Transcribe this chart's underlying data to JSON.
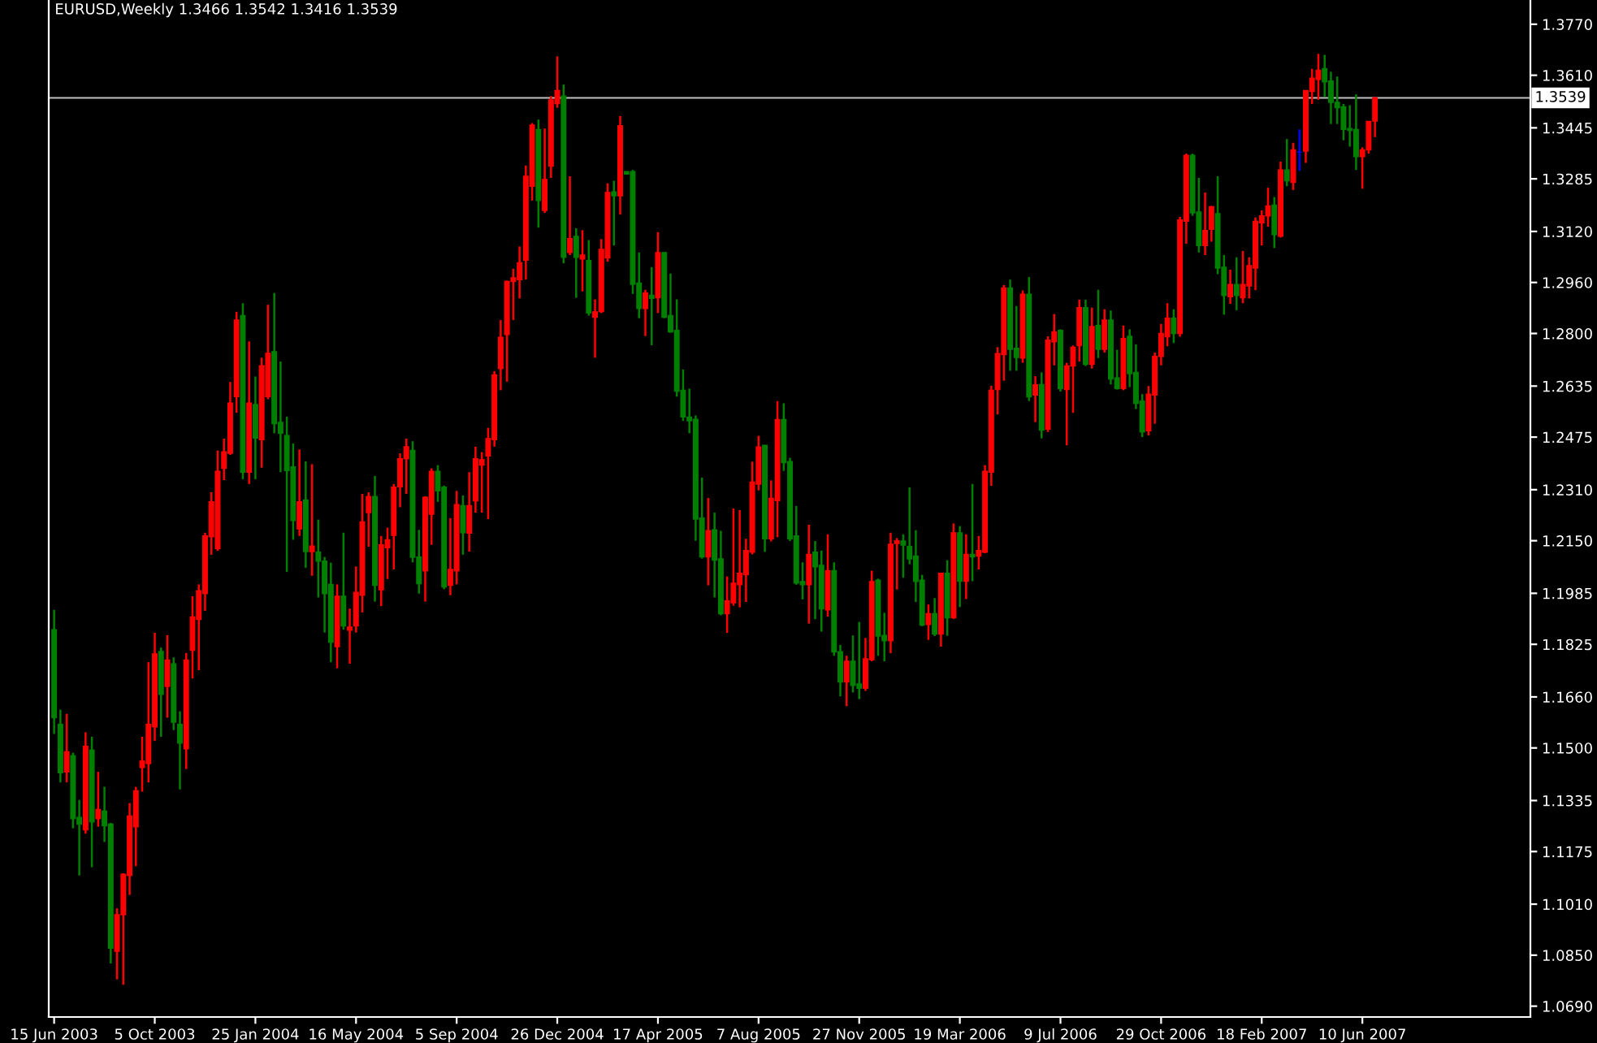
{
  "chart_data": {
    "type": "candlestick",
    "title": "EURUSD,Weekly 1.3466 1.3542 1.3416 1.3539",
    "x": [
      "2003-06-15",
      "2003-06-22",
      "2003-06-29",
      "2003-07-06",
      "2003-07-13",
      "2003-07-20",
      "2003-07-27",
      "2003-08-03",
      "2003-08-10",
      "2003-08-17",
      "2003-08-24",
      "2003-08-31",
      "2003-09-07",
      "2003-09-14",
      "2003-09-21",
      "2003-09-28",
      "2003-10-05",
      "2003-10-12",
      "2003-10-19",
      "2003-10-26",
      "2003-11-02",
      "2003-11-09",
      "2003-11-16",
      "2003-11-23",
      "2003-11-30",
      "2003-12-07",
      "2003-12-14",
      "2003-12-21",
      "2003-12-28",
      "2004-01-04",
      "2004-01-11",
      "2004-01-18",
      "2004-01-25",
      "2004-02-01",
      "2004-02-08",
      "2004-02-15",
      "2004-02-22",
      "2004-02-29",
      "2004-03-07",
      "2004-03-14",
      "2004-03-21",
      "2004-03-28",
      "2004-04-04",
      "2004-04-11",
      "2004-04-18",
      "2004-04-25",
      "2004-05-02",
      "2004-05-09",
      "2004-05-16",
      "2004-05-23",
      "2004-05-30",
      "2004-06-06",
      "2004-06-13",
      "2004-06-20",
      "2004-06-27",
      "2004-07-04",
      "2004-07-11",
      "2004-07-18",
      "2004-07-25",
      "2004-08-01",
      "2004-08-08",
      "2004-08-15",
      "2004-08-22",
      "2004-08-29",
      "2004-09-05",
      "2004-09-12",
      "2004-09-19",
      "2004-09-26",
      "2004-10-03",
      "2004-10-10",
      "2004-10-17",
      "2004-10-24",
      "2004-10-31",
      "2004-11-07",
      "2004-11-14",
      "2004-11-21",
      "2004-11-28",
      "2004-12-05",
      "2004-12-12",
      "2004-12-19",
      "2004-12-26",
      "2005-01-02",
      "2005-01-09",
      "2005-01-16",
      "2005-01-23",
      "2005-01-30",
      "2005-02-06",
      "2005-02-13",
      "2005-02-20",
      "2005-02-27",
      "2005-03-06",
      "2005-03-13",
      "2005-03-20",
      "2005-03-27",
      "2005-04-03",
      "2005-04-10",
      "2005-04-17",
      "2005-04-24",
      "2005-05-01",
      "2005-05-08",
      "2005-05-15",
      "2005-05-22",
      "2005-05-29",
      "2005-06-05",
      "2005-06-12",
      "2005-06-19",
      "2005-06-26",
      "2005-07-03",
      "2005-07-10",
      "2005-07-17",
      "2005-07-24",
      "2005-07-31",
      "2005-08-07",
      "2005-08-14",
      "2005-08-21",
      "2005-08-28",
      "2005-09-04",
      "2005-09-11",
      "2005-09-18",
      "2005-09-25",
      "2005-10-02",
      "2005-10-09",
      "2005-10-16",
      "2005-10-23",
      "2005-10-30",
      "2005-11-06",
      "2005-11-13",
      "2005-11-20",
      "2005-11-27",
      "2005-12-04",
      "2005-12-11",
      "2005-12-18",
      "2005-12-25",
      "2006-01-01",
      "2006-01-08",
      "2006-01-15",
      "2006-01-22",
      "2006-01-29",
      "2006-02-05",
      "2006-02-12",
      "2006-02-19",
      "2006-02-26",
      "2006-03-05",
      "2006-03-12",
      "2006-03-19",
      "2006-03-26",
      "2006-04-02",
      "2006-04-09",
      "2006-04-16",
      "2006-04-23",
      "2006-04-30",
      "2006-05-07",
      "2006-05-14",
      "2006-05-21",
      "2006-05-28",
      "2006-06-04",
      "2006-06-11",
      "2006-06-18",
      "2006-06-25",
      "2006-07-02",
      "2006-07-09",
      "2006-07-16",
      "2006-07-23",
      "2006-07-30",
      "2006-08-06",
      "2006-08-13",
      "2006-08-20",
      "2006-08-27",
      "2006-09-03",
      "2006-09-10",
      "2006-09-17",
      "2006-09-24",
      "2006-10-01",
      "2006-10-08",
      "2006-10-15",
      "2006-10-22",
      "2006-10-29",
      "2006-11-05",
      "2006-11-12",
      "2006-11-19",
      "2006-11-26",
      "2006-12-03",
      "2006-12-10",
      "2006-12-17",
      "2006-12-24",
      "2006-12-31",
      "2007-01-07",
      "2007-01-14",
      "2007-01-21",
      "2007-01-28",
      "2007-02-04",
      "2007-02-11",
      "2007-02-18",
      "2007-02-25",
      "2007-03-04",
      "2007-03-11",
      "2007-03-18",
      "2007-03-25",
      "2007-04-01",
      "2007-04-08",
      "2007-04-15",
      "2007-04-22",
      "2007-04-29",
      "2007-05-06",
      "2007-05-13",
      "2007-05-20",
      "2007-05-27",
      "2007-06-03",
      "2007-06-10",
      "2007-06-17",
      "2007-06-24"
    ],
    "ohlc": [
      [
        1.1871,
        1.1933,
        1.1544,
        1.1595
      ],
      [
        1.1574,
        1.162,
        1.1392,
        1.1422
      ],
      [
        1.1425,
        1.1607,
        1.1392,
        1.1488
      ],
      [
        1.1476,
        1.1485,
        1.1248,
        1.1278
      ],
      [
        1.1282,
        1.1337,
        1.11,
        1.1261
      ],
      [
        1.1243,
        1.1549,
        1.1231,
        1.1505
      ],
      [
        1.1493,
        1.1535,
        1.1126,
        1.1268
      ],
      [
        1.1278,
        1.1425,
        1.1253,
        1.1307
      ],
      [
        1.1302,
        1.1378,
        1.1205,
        1.1256
      ],
      [
        1.1261,
        1.1265,
        1.0824,
        1.0872
      ],
      [
        1.0862,
        1.0997,
        1.0774,
        1.0977
      ],
      [
        1.0977,
        1.1107,
        1.0757,
        1.1104
      ],
      [
        1.11,
        1.1327,
        1.1039,
        1.1287
      ],
      [
        1.1253,
        1.1378,
        1.1129,
        1.1366
      ],
      [
        1.1439,
        1.1535,
        1.1363,
        1.1459
      ],
      [
        1.1451,
        1.1769,
        1.1392,
        1.1574
      ],
      [
        1.1566,
        1.1861,
        1.1522,
        1.1795
      ],
      [
        1.1803,
        1.1815,
        1.1535,
        1.1668
      ],
      [
        1.1693,
        1.1854,
        1.1595,
        1.1776
      ],
      [
        1.1764,
        1.1784,
        1.1556,
        1.1581
      ],
      [
        1.1574,
        1.1615,
        1.137,
        1.1515
      ],
      [
        1.1497,
        1.1798,
        1.1434,
        1.1776
      ],
      [
        1.1806,
        1.1976,
        1.1718,
        1.1911
      ],
      [
        1.1903,
        1.2013,
        1.1744,
        1.1993
      ],
      [
        1.1984,
        1.2175,
        1.193,
        1.2165
      ],
      [
        1.2162,
        1.2302,
        1.2106,
        1.2272
      ],
      [
        1.2125,
        1.2433,
        1.2118,
        1.2368
      ],
      [
        1.2377,
        1.247,
        1.234,
        1.2429
      ],
      [
        1.2424,
        1.2648,
        1.2419,
        1.2582
      ],
      [
        1.2602,
        1.2868,
        1.2551,
        1.2842
      ],
      [
        1.2856,
        1.2895,
        1.2343,
        1.2365
      ],
      [
        1.2365,
        1.2775,
        1.2328,
        1.2582
      ],
      [
        1.2577,
        1.2665,
        1.2343,
        1.2472
      ],
      [
        1.2467,
        1.2724,
        1.2379,
        1.2699
      ],
      [
        1.2602,
        1.289,
        1.2594,
        1.2738
      ],
      [
        1.2743,
        1.2927,
        1.2487,
        1.2517
      ],
      [
        1.2521,
        1.2712,
        1.2365,
        1.2487
      ],
      [
        1.248,
        1.2539,
        1.2052,
        1.237
      ],
      [
        1.2382,
        1.2455,
        1.2153,
        1.2213
      ],
      [
        1.2187,
        1.2436,
        1.2165,
        1.2272
      ],
      [
        1.2277,
        1.2399,
        1.2065,
        1.2116
      ],
      [
        1.2116,
        1.239,
        1.204,
        1.2133
      ],
      [
        1.2114,
        1.2216,
        1.1972,
        1.2086
      ],
      [
        1.2086,
        1.2099,
        1.1862,
        1.1984
      ],
      [
        1.2013,
        1.2081,
        1.1769,
        1.1832
      ],
      [
        1.1818,
        1.2013,
        1.175,
        1.1976
      ],
      [
        1.1976,
        1.2175,
        1.1871,
        1.1883
      ],
      [
        1.1869,
        1.1937,
        1.1764,
        1.1879
      ],
      [
        1.1883,
        1.2069,
        1.1862,
        1.1988
      ],
      [
        1.1979,
        1.2297,
        1.1925,
        1.2209
      ],
      [
        1.2238,
        1.2302,
        1.2131,
        1.2289
      ],
      [
        1.2289,
        1.2353,
        1.1959,
        1.201
      ],
      [
        1.1996,
        1.2165,
        1.1945,
        1.2137
      ],
      [
        1.2128,
        1.2191,
        1.203,
        1.2153
      ],
      [
        1.2167,
        1.2328,
        1.206,
        1.2318
      ],
      [
        1.2319,
        1.2424,
        1.2255,
        1.2407
      ],
      [
        1.2407,
        1.247,
        1.2297,
        1.2445
      ],
      [
        1.2433,
        1.2462,
        1.2082,
        1.2098
      ],
      [
        1.2099,
        1.2184,
        1.1984,
        1.2015
      ],
      [
        1.2055,
        1.2289,
        1.1959,
        1.2286
      ],
      [
        1.2233,
        1.2377,
        1.2137,
        1.2368
      ],
      [
        1.2368,
        1.2387,
        1.2272,
        1.2306
      ],
      [
        1.2318,
        1.2323,
        1.1998,
        1.2005
      ],
      [
        1.201,
        1.2221,
        1.1979,
        1.206
      ],
      [
        1.2055,
        1.2306,
        1.2013,
        1.2263
      ],
      [
        1.226,
        1.2292,
        1.2106,
        1.2175
      ],
      [
        1.2174,
        1.2365,
        1.2116,
        1.226
      ],
      [
        1.2275,
        1.2445,
        1.2238,
        1.2407
      ],
      [
        1.2387,
        1.2428,
        1.2238,
        1.2404
      ],
      [
        1.2416,
        1.2504,
        1.2218,
        1.247
      ],
      [
        1.2467,
        1.2682,
        1.2445,
        1.267
      ],
      [
        1.269,
        1.2842,
        1.2622,
        1.2788
      ],
      [
        1.2797,
        1.2966,
        1.2649,
        1.2963
      ],
      [
        1.2963,
        1.3003,
        1.2842,
        1.2975
      ],
      [
        1.2969,
        1.3073,
        1.291,
        1.3022
      ],
      [
        1.303,
        1.3327,
        1.2969,
        1.3293
      ],
      [
        1.3262,
        1.346,
        1.3217,
        1.3454
      ],
      [
        1.344,
        1.3471,
        1.3132,
        1.3217
      ],
      [
        1.3186,
        1.3443,
        1.3178,
        1.3283
      ],
      [
        1.3325,
        1.3545,
        1.3288,
        1.3533
      ],
      [
        1.3521,
        1.3669,
        1.3508,
        1.3562
      ],
      [
        1.3545,
        1.3581,
        1.302,
        1.3039
      ],
      [
        1.3054,
        1.3293,
        1.3046,
        1.3098
      ],
      [
        1.3105,
        1.313,
        1.2912,
        1.3039
      ],
      [
        1.3034,
        1.3124,
        1.2932,
        1.3046
      ],
      [
        1.3029,
        1.3093,
        1.2856,
        1.2864
      ],
      [
        1.2851,
        1.2907,
        1.2724,
        1.2868
      ],
      [
        1.2869,
        1.3096,
        1.2864,
        1.3064
      ],
      [
        1.3037,
        1.3271,
        1.3025,
        1.3242
      ],
      [
        1.3244,
        1.3279,
        1.3076,
        1.3232
      ],
      [
        1.3232,
        1.3482,
        1.3173,
        1.3452
      ],
      [
        1.3308,
        1.3308,
        1.33,
        1.33
      ],
      [
        1.3308,
        1.3313,
        1.2924,
        1.2954
      ],
      [
        1.2958,
        1.3054,
        1.2848,
        1.2878
      ],
      [
        1.2878,
        1.2937,
        1.2792,
        1.2927
      ],
      [
        1.292,
        1.3008,
        1.2763,
        1.291
      ],
      [
        1.2912,
        1.3118,
        1.2864,
        1.3054
      ],
      [
        1.3054,
        1.3054,
        1.2848,
        1.2851
      ],
      [
        1.2856,
        1.2988,
        1.2802,
        1.2805
      ],
      [
        1.281,
        1.2907,
        1.2602,
        1.2619
      ],
      [
        1.2622,
        1.2687,
        1.2526,
        1.2538
      ],
      [
        1.2538,
        1.2627,
        1.2487,
        1.2526
      ],
      [
        1.2531,
        1.2543,
        1.215,
        1.2218
      ],
      [
        1.2221,
        1.2348,
        1.2094,
        1.2099
      ],
      [
        1.2099,
        1.2284,
        1.201,
        1.2182
      ],
      [
        1.2184,
        1.2238,
        1.1972,
        1.2089
      ],
      [
        1.2093,
        1.2181,
        1.1916,
        1.1921
      ],
      [
        1.1921,
        1.2038,
        1.1861,
        1.1961
      ],
      [
        1.1955,
        1.2251,
        1.1946,
        1.2017
      ],
      [
        1.2012,
        1.2246,
        1.1941,
        1.2048
      ],
      [
        1.2043,
        1.2156,
        1.1958,
        1.2119
      ],
      [
        1.2114,
        1.2398,
        1.2107,
        1.2334
      ],
      [
        1.2327,
        1.2479,
        1.2308,
        1.2444
      ],
      [
        1.2449,
        1.2449,
        1.2115,
        1.2156
      ],
      [
        1.2156,
        1.2339,
        1.2148,
        1.2283
      ],
      [
        1.2276,
        1.2588,
        1.2161,
        1.253
      ],
      [
        1.253,
        1.2581,
        1.2369,
        1.2395
      ],
      [
        1.2398,
        1.241,
        1.2149,
        1.2156
      ],
      [
        1.2165,
        1.2259,
        1.2012,
        1.2017
      ],
      [
        1.2022,
        1.2082,
        1.1966,
        1.2012
      ],
      [
        1.2012,
        1.22,
        1.189,
        1.2107
      ],
      [
        1.2114,
        1.2149,
        1.1904,
        1.2068
      ],
      [
        1.2073,
        1.2119,
        1.1865,
        1.1936
      ],
      [
        1.1933,
        1.217,
        1.1912,
        1.2056
      ],
      [
        1.2056,
        1.2082,
        1.1789,
        1.1801
      ],
      [
        1.1802,
        1.1823,
        1.1662,
        1.1707
      ],
      [
        1.1707,
        1.1789,
        1.1631,
        1.1772
      ],
      [
        1.1772,
        1.1853,
        1.1674,
        1.1696
      ],
      [
        1.1701,
        1.1895,
        1.1653,
        1.1687
      ],
      [
        1.1687,
        1.1845,
        1.1679,
        1.178
      ],
      [
        1.1777,
        1.2056,
        1.1772,
        1.2022
      ],
      [
        1.2026,
        1.2031,
        1.1789,
        1.1851
      ],
      [
        1.1853,
        1.1924,
        1.1772,
        1.1836
      ],
      [
        1.1836,
        1.2175,
        1.1797,
        1.2139
      ],
      [
        1.2141,
        1.2158,
        1.1997,
        1.2149
      ],
      [
        1.2149,
        1.217,
        1.2034,
        1.2136
      ],
      [
        1.2132,
        1.2317,
        1.2076,
        1.2093
      ],
      [
        1.2102,
        1.2183,
        1.1958,
        1.2022
      ],
      [
        1.2026,
        1.2043,
        1.1882,
        1.1885
      ],
      [
        1.1887,
        1.195,
        1.1839,
        1.1921
      ],
      [
        1.1921,
        1.197,
        1.1851,
        1.1857
      ],
      [
        1.1857,
        1.2048,
        1.1818,
        1.2048
      ],
      [
        1.2048,
        1.2089,
        1.1852,
        1.1908
      ],
      [
        1.1908,
        1.2204,
        1.1905,
        1.2175
      ],
      [
        1.2175,
        1.2196,
        1.1942,
        1.2023
      ],
      [
        1.2023,
        1.217,
        1.1967,
        1.2107
      ],
      [
        1.2107,
        1.2328,
        1.2023,
        1.2099
      ],
      [
        1.2102,
        1.2165,
        1.206,
        1.2119
      ],
      [
        1.2114,
        1.2387,
        1.2111,
        1.2368
      ],
      [
        1.2365,
        1.2636,
        1.2322,
        1.2622
      ],
      [
        1.2624,
        1.2757,
        1.2546,
        1.2737
      ],
      [
        1.2734,
        1.2952,
        1.2652,
        1.2943
      ],
      [
        1.2943,
        1.2969,
        1.2683,
        1.275
      ],
      [
        1.2754,
        1.2886,
        1.2683,
        1.2725
      ],
      [
        1.2723,
        1.2935,
        1.2708,
        1.2923
      ],
      [
        1.2923,
        1.2977,
        1.2588,
        1.2601
      ],
      [
        1.2607,
        1.2666,
        1.2522,
        1.2639
      ],
      [
        1.264,
        1.2678,
        1.2471,
        1.2497
      ],
      [
        1.25,
        1.2791,
        1.2491,
        1.2779
      ],
      [
        1.2774,
        1.2861,
        1.27,
        1.2805
      ],
      [
        1.281,
        1.2813,
        1.2618,
        1.2627
      ],
      [
        1.2624,
        1.2708,
        1.2449,
        1.2698
      ],
      [
        1.2698,
        1.2762,
        1.2551,
        1.2757
      ],
      [
        1.2762,
        1.2906,
        1.2712,
        1.2881
      ],
      [
        1.2881,
        1.2906,
        1.2698,
        1.2703
      ],
      [
        1.2703,
        1.2881,
        1.269,
        1.2822
      ],
      [
        1.2825,
        1.2937,
        1.2723,
        1.275
      ],
      [
        1.275,
        1.2876,
        1.274,
        1.2842
      ],
      [
        1.2842,
        1.2872,
        1.264,
        1.2657
      ],
      [
        1.2661,
        1.2749,
        1.2624,
        1.2627
      ],
      [
        1.2627,
        1.2825,
        1.2622,
        1.2784
      ],
      [
        1.2791,
        1.2813,
        1.2632,
        1.2674
      ],
      [
        1.2678,
        1.2766,
        1.2563,
        1.2581
      ],
      [
        1.2588,
        1.261,
        1.2475,
        1.2491
      ],
      [
        1.2495,
        1.2635,
        1.248,
        1.261
      ],
      [
        1.2607,
        1.274,
        1.2517,
        1.2728
      ],
      [
        1.2728,
        1.283,
        1.27,
        1.28
      ],
      [
        1.279,
        1.2895,
        1.276,
        1.2848
      ],
      [
        1.2848,
        1.2876,
        1.277,
        1.28
      ],
      [
        1.28,
        1.3166,
        1.279,
        1.3156
      ],
      [
        1.3152,
        1.3364,
        1.3081,
        1.3359
      ],
      [
        1.3359,
        1.3364,
        1.3169,
        1.3178
      ],
      [
        1.3181,
        1.3288,
        1.3054,
        1.3076
      ],
      [
        1.3076,
        1.3242,
        1.3046,
        1.3123
      ],
      [
        1.3127,
        1.32,
        1.3088,
        1.3198
      ],
      [
        1.3176,
        1.3293,
        1.2986,
        1.3005
      ],
      [
        1.3008,
        1.3046,
        1.2859,
        1.2919
      ],
      [
        1.2915,
        1.3,
        1.2893,
        1.2954
      ],
      [
        1.2954,
        1.3039,
        1.2873,
        1.2919
      ],
      [
        1.2912,
        1.3059,
        1.2895,
        1.2954
      ],
      [
        1.2949,
        1.3039,
        1.291,
        1.3013
      ],
      [
        1.3005,
        1.3164,
        1.2936,
        1.3152
      ],
      [
        1.3147,
        1.3186,
        1.3076,
        1.3169
      ],
      [
        1.3169,
        1.3257,
        1.3135,
        1.32
      ],
      [
        1.3203,
        1.3228,
        1.3068,
        1.311
      ],
      [
        1.3105,
        1.3339,
        1.3101,
        1.3313
      ],
      [
        1.3313,
        1.341,
        1.3262,
        1.3279
      ],
      [
        1.3274,
        1.3398,
        1.325,
        1.3376
      ],
      [
        1.3369,
        1.344,
        1.331,
        1.3369
      ],
      [
        1.3372,
        1.3562,
        1.3335,
        1.3562
      ],
      [
        1.3559,
        1.363,
        1.352,
        1.3601
      ],
      [
        1.3597,
        1.3677,
        1.3533,
        1.3626
      ],
      [
        1.3631,
        1.3674,
        1.3542,
        1.3589
      ],
      [
        1.3592,
        1.3621,
        1.3457,
        1.3525
      ],
      [
        1.3525,
        1.3606,
        1.3457,
        1.3508
      ],
      [
        1.3511,
        1.352,
        1.3406,
        1.344
      ],
      [
        1.3443,
        1.3516,
        1.3386,
        1.3437
      ],
      [
        1.344,
        1.355,
        1.3313,
        1.3355
      ],
      [
        1.3355,
        1.3384,
        1.3254,
        1.3376
      ],
      [
        1.3376,
        1.3465,
        1.3364,
        1.3465
      ],
      [
        1.3466,
        1.3542,
        1.3416,
        1.3539
      ]
    ],
    "colors": [
      "#008000",
      "#008000",
      "#ff0000",
      "#008000",
      "#008000",
      "#ff0000",
      "#008000",
      "#ff0000",
      "#008000",
      "#008000",
      "#ff0000",
      "#ff0000",
      "#ff0000",
      "#ff0000",
      "#ff0000",
      "#ff0000",
      "#ff0000",
      "#008000",
      "#ff0000",
      "#008000",
      "#008000",
      "#ff0000",
      "#ff0000",
      "#ff0000",
      "#ff0000",
      "#ff0000",
      "#ff0000",
      "#ff0000",
      "#ff0000",
      "#ff0000",
      "#008000",
      "#ff0000",
      "#008000",
      "#ff0000",
      "#ff0000",
      "#008000",
      "#008000",
      "#008000",
      "#008000",
      "#ff0000",
      "#008000",
      "#ff0000",
      "#008000",
      "#008000",
      "#008000",
      "#ff0000",
      "#008000",
      "#ff0000",
      "#ff0000",
      "#ff0000",
      "#ff0000",
      "#008000",
      "#ff0000",
      "#ff0000",
      "#ff0000",
      "#ff0000",
      "#ff0000",
      "#008000",
      "#008000",
      "#ff0000",
      "#ff0000",
      "#008000",
      "#008000",
      "#ff0000",
      "#ff0000",
      "#008000",
      "#ff0000",
      "#ff0000",
      "#ff0000",
      "#ff0000",
      "#ff0000",
      "#ff0000",
      "#ff0000",
      "#ff0000",
      "#ff0000",
      "#ff0000",
      "#ff0000",
      "#008000",
      "#ff0000",
      "#ff0000",
      "#ff0000",
      "#008000",
      "#ff0000",
      "#008000",
      "#ff0000",
      "#008000",
      "#ff0000",
      "#ff0000",
      "#ff0000",
      "#008000",
      "#ff0000",
      "#008000",
      "#008000",
      "#008000",
      "#ff0000",
      "#008000",
      "#ff0000",
      "#008000",
      "#008000",
      "#008000",
      "#008000",
      "#008000",
      "#008000",
      "#008000",
      "#ff0000",
      "#008000",
      "#008000",
      "#ff0000",
      "#ff0000",
      "#ff0000",
      "#ff0000",
      "#ff0000",
      "#ff0000",
      "#008000",
      "#ff0000",
      "#ff0000",
      "#008000",
      "#008000",
      "#008000",
      "#008000",
      "#ff0000",
      "#008000",
      "#008000",
      "#ff0000",
      "#008000",
      "#008000",
      "#ff0000",
      "#008000",
      "#008000",
      "#ff0000",
      "#ff0000",
      "#008000",
      "#008000",
      "#ff0000",
      "#ff0000",
      "#008000",
      "#008000",
      "#008000",
      "#008000",
      "#ff0000",
      "#008000",
      "#ff0000",
      "#008000",
      "#ff0000",
      "#008000",
      "#ff0000",
      "#008000",
      "#ff0000",
      "#ff0000",
      "#ff0000",
      "#ff0000",
      "#ff0000",
      "#008000",
      "#008000",
      "#ff0000",
      "#008000",
      "#ff0000",
      "#008000",
      "#ff0000",
      "#ff0000",
      "#008000",
      "#ff0000",
      "#ff0000",
      "#ff0000",
      "#008000",
      "#ff0000",
      "#008000",
      "#ff0000",
      "#008000",
      "#008000",
      "#ff0000",
      "#008000",
      "#008000",
      "#008000",
      "#ff0000",
      "#ff0000",
      "#ff0000",
      "#ff0000",
      "#008000",
      "#ff0000",
      "#ff0000",
      "#008000",
      "#008000",
      "#ff0000",
      "#ff0000",
      "#008000",
      "#008000",
      "#ff0000",
      "#008000",
      "#ff0000",
      "#ff0000",
      "#ff0000",
      "#ff0000",
      "#ff0000",
      "#008000",
      "#ff0000",
      "#008000",
      "#ff0000",
      "#0000ff",
      "#ff0000",
      "#ff0000",
      "#ff0000",
      "#008000",
      "#008000",
      "#008000",
      "#008000",
      "#008000",
      "#008000",
      "#ff0000",
      "#ff0000",
      "#ff0000"
    ],
    "xlim": [
      "2003-06-09",
      "2007-12-14"
    ],
    "xticks": [
      {
        "value": "2003-06-15",
        "label": "15 Jun 2003"
      },
      {
        "value": "2003-10-05",
        "label": "5 Oct 2003"
      },
      {
        "value": "2004-01-25",
        "label": "25 Jan 2004"
      },
      {
        "value": "2004-05-16",
        "label": "16 May 2004"
      },
      {
        "value": "2004-09-05",
        "label": "5 Sep 2004"
      },
      {
        "value": "2004-12-26",
        "label": "26 Dec 2004"
      },
      {
        "value": "2005-04-17",
        "label": "17 Apr 2005"
      },
      {
        "value": "2005-08-07",
        "label": "7 Aug 2005"
      },
      {
        "value": "2005-11-27",
        "label": "27 Nov 2005"
      },
      {
        "value": "2006-03-19",
        "label": "19 Mar 2006"
      },
      {
        "value": "2006-07-09",
        "label": "9 Jul 2006"
      },
      {
        "value": "2006-10-29",
        "label": "29 Oct 2006"
      },
      {
        "value": "2007-02-18",
        "label": "18 Feb 2007"
      },
      {
        "value": "2007-06-10",
        "label": "10 Jun 2007"
      }
    ],
    "ylim": [
      1.0656,
      1.3846
    ],
    "yticks": [
      {
        "value": 1.377,
        "label": "1.3770"
      },
      {
        "value": 1.361,
        "label": "1.3610"
      },
      {
        "value": 1.3445,
        "label": "1.3445"
      },
      {
        "value": 1.3285,
        "label": "1.3285"
      },
      {
        "value": 1.312,
        "label": "1.3120"
      },
      {
        "value": 1.296,
        "label": "1.2960"
      },
      {
        "value": 1.28,
        "label": "1.2800"
      },
      {
        "value": 1.2635,
        "label": "1.2635"
      },
      {
        "value": 1.2475,
        "label": "1.2475"
      },
      {
        "value": 1.231,
        "label": "1.2310"
      },
      {
        "value": 1.215,
        "label": "1.2150"
      },
      {
        "value": 1.1985,
        "label": "1.1985"
      },
      {
        "value": 1.1825,
        "label": "1.1825"
      },
      {
        "value": 1.166,
        "label": "1.1660"
      },
      {
        "value": 1.15,
        "label": "1.1500"
      },
      {
        "value": 1.1335,
        "label": "1.1335"
      },
      {
        "value": 1.1175,
        "label": "1.1175"
      },
      {
        "value": 1.101,
        "label": "1.1010"
      },
      {
        "value": 1.085,
        "label": "1.0850"
      },
      {
        "value": 1.069,
        "label": "1.0690"
      }
    ],
    "ref_lines": [
      {
        "axis": "y",
        "value": 1.3539,
        "label": "1.3539",
        "color": "#c0c0c0"
      }
    ]
  }
}
